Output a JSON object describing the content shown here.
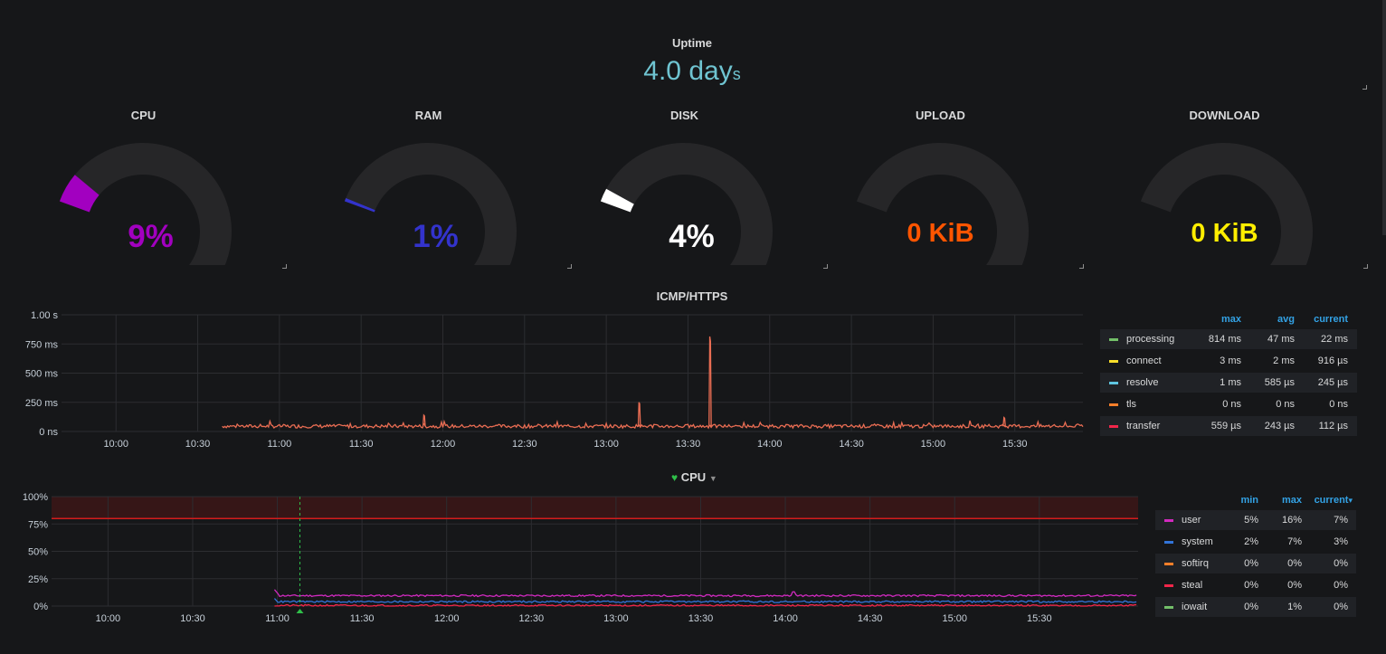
{
  "uptime": {
    "title": "Uptime",
    "value": "4.0 day",
    "unit": "s",
    "color": "#6fc4d1"
  },
  "gauges": [
    {
      "title": "CPU",
      "value": "9%",
      "fraction": 0.09,
      "color": "#a200c0"
    },
    {
      "title": "RAM",
      "value": "1%",
      "fraction": 0.01,
      "color": "#3333cc"
    },
    {
      "title": "DISK",
      "value": "4%",
      "fraction": 0.04,
      "color": "#ffffff"
    },
    {
      "title": "UPLOAD",
      "value": "0 KiB",
      "fraction": 0.0,
      "color": "#ff5500"
    },
    {
      "title": "DOWNLOAD",
      "value": "0 KiB",
      "fraction": 0.0,
      "color": "#ffee00"
    }
  ],
  "icmp": {
    "title": "ICMP/HTTPS",
    "legend": {
      "headers": [
        "max",
        "avg",
        "current"
      ],
      "rows": [
        {
          "name": "processing",
          "color": "#73bf69",
          "max": "814 ms",
          "avg": "47 ms",
          "current": "22 ms"
        },
        {
          "name": "connect",
          "color": "#fade2a",
          "max": "3 ms",
          "avg": "2 ms",
          "current": "916 µs"
        },
        {
          "name": "resolve",
          "color": "#5fc5e0",
          "max": "1 ms",
          "avg": "585 µs",
          "current": "245 µs"
        },
        {
          "name": "tls",
          "color": "#ff7f2a",
          "max": "0 ns",
          "avg": "0 ns",
          "current": "0 ns"
        },
        {
          "name": "transfer",
          "color": "#f2264a",
          "max": "559 µs",
          "avg": "243 µs",
          "current": "112 µs"
        }
      ]
    }
  },
  "cpu_panel": {
    "title": "CPU",
    "heart_icon_color": "#2fbf49",
    "legend": {
      "headers": [
        "min",
        "max",
        "current"
      ],
      "sort_indicator": "▾",
      "rows": [
        {
          "name": "user",
          "color": "#d12abf",
          "min": "5%",
          "max": "16%",
          "current": "7%"
        },
        {
          "name": "system",
          "color": "#3274d9",
          "min": "2%",
          "max": "7%",
          "current": "3%"
        },
        {
          "name": "softirq",
          "color": "#ff7f2a",
          "min": "0%",
          "max": "0%",
          "current": "0%"
        },
        {
          "name": "steal",
          "color": "#f2264a",
          "min": "0%",
          "max": "0%",
          "current": "0%"
        },
        {
          "name": "iowait",
          "color": "#73bf69",
          "min": "0%",
          "max": "1%",
          "current": "0%"
        }
      ]
    }
  },
  "chart_data": [
    {
      "type": "line",
      "title": "ICMP/HTTPS",
      "y_tick_labels": [
        "1.00 s",
        "750 ms",
        "500 ms",
        "250 ms",
        "0 ns"
      ],
      "x_tick_labels": [
        "10:00",
        "10:30",
        "11:00",
        "11:30",
        "12:00",
        "12:30",
        "13:00",
        "13:30",
        "14:00",
        "14:30",
        "15:00",
        "15:30"
      ],
      "x_range_minutes": [
        580,
        955
      ],
      "ylim_ms": [
        0,
        1000
      ],
      "series": [
        {
          "name": "processing",
          "color": "#e96d53",
          "data_start_minute": 639,
          "baseline_ms": 45,
          "spikes": [
            {
              "minute": 713,
              "ms": 140
            },
            {
              "minute": 792,
              "ms": 250
            },
            {
              "minute": 818,
              "ms": 814
            },
            {
              "minute": 926,
              "ms": 120
            }
          ]
        }
      ]
    },
    {
      "type": "line",
      "title": "CPU",
      "y_tick_labels": [
        "100%",
        "75%",
        "50%",
        "25%",
        "0%"
      ],
      "x_tick_labels": [
        "10:00",
        "10:30",
        "11:00",
        "11:30",
        "12:00",
        "12:30",
        "13:00",
        "13:30",
        "14:00",
        "14:30",
        "15:00",
        "15:30"
      ],
      "x_range_minutes": [
        580,
        965
      ],
      "ylim_pct": [
        0,
        100
      ],
      "threshold_pct": 80,
      "annotation_minute": 668,
      "series": [
        {
          "name": "user",
          "color": "#d12abf",
          "data_start_minute": 659,
          "level_pct": 9.5,
          "first_peak_pct": 15,
          "peak_minute": 843,
          "peak_pct": 13
        },
        {
          "name": "system",
          "color": "#3274d9",
          "data_start_minute": 659,
          "level_pct": 4,
          "first_peak_pct": 7
        },
        {
          "name": "steal",
          "color": "#f2264a",
          "data_start_minute": 659,
          "level_pct": 0.5
        }
      ]
    }
  ]
}
